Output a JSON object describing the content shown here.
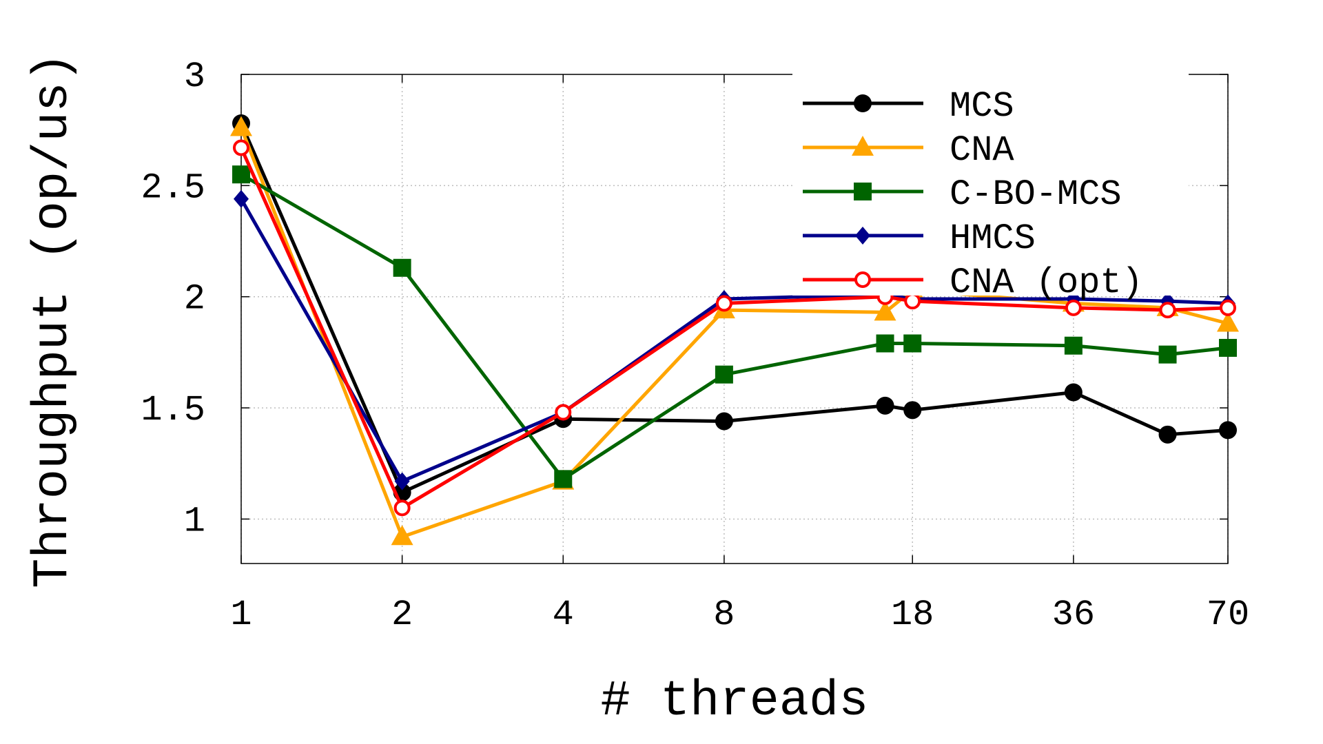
{
  "chart_data": {
    "type": "line",
    "xlabel": "# threads",
    "ylabel": "Throughput (op/us)",
    "categories": [
      "1",
      "2",
      "4",
      "8",
      "18",
      "36",
      "70"
    ],
    "x": [
      1,
      2,
      4,
      8,
      16,
      18,
      36,
      54,
      70
    ],
    "ylim": [
      0.8,
      3.0
    ],
    "yticks": [
      "1",
      "1.5",
      "2",
      "2.5",
      "3"
    ],
    "ytick_values": [
      1,
      1.5,
      2,
      2.5,
      3
    ],
    "grid": true,
    "legend_position": "top-right",
    "series": [
      {
        "name": "MCS",
        "color": "#000000",
        "marker": "circle",
        "values": [
          2.78,
          1.12,
          1.45,
          1.44,
          1.51,
          1.49,
          1.57,
          1.38,
          1.4
        ]
      },
      {
        "name": "CNA",
        "color": "#ffa500",
        "marker": "triangle",
        "values": [
          2.76,
          0.92,
          1.17,
          1.94,
          1.93,
          2.03,
          1.97,
          1.95,
          1.88
        ]
      },
      {
        "name": "C-BO-MCS",
        "color": "#006400",
        "marker": "square",
        "values": [
          2.55,
          2.13,
          1.18,
          1.65,
          1.79,
          1.79,
          1.78,
          1.74,
          1.77
        ]
      },
      {
        "name": "HMCS",
        "color": "#00008b",
        "marker": "diamond",
        "values": [
          2.44,
          1.17,
          1.48,
          1.99,
          2.01,
          1.99,
          1.99,
          1.98,
          1.97
        ]
      },
      {
        "name": "CNA (opt)",
        "color": "#ff0000",
        "marker": "open-circle",
        "values": [
          2.67,
          1.05,
          1.48,
          1.97,
          2.0,
          1.98,
          1.95,
          1.94,
          1.95
        ]
      }
    ]
  }
}
